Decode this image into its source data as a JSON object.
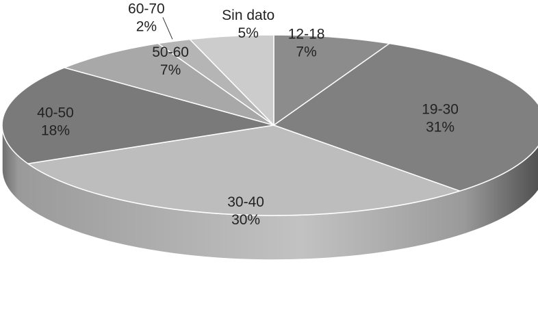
{
  "chart_data": {
    "type": "pie",
    "style": "3d",
    "title": "",
    "grid": false,
    "legend": "none",
    "slices": [
      {
        "label": "12-18",
        "value": 7,
        "value_label": "7%",
        "color": "#8c8c8c"
      },
      {
        "label": "19-30",
        "value": 31,
        "value_label": "31%",
        "color": "#808080"
      },
      {
        "label": "30-40",
        "value": 30,
        "value_label": "30%",
        "color": "#bdbdbd"
      },
      {
        "label": "40-50",
        "value": 18,
        "value_label": "18%",
        "color": "#7a7a7a"
      },
      {
        "label": "50-60",
        "value": 7,
        "value_label": "7%",
        "color": "#a8a8a8"
      },
      {
        "label": "60-70",
        "value": 2,
        "value_label": "2%",
        "color": "#b5b5b5"
      },
      {
        "label": "Sin dato",
        "value": 5,
        "value_label": "5%",
        "color": "#cccccc"
      }
    ]
  }
}
